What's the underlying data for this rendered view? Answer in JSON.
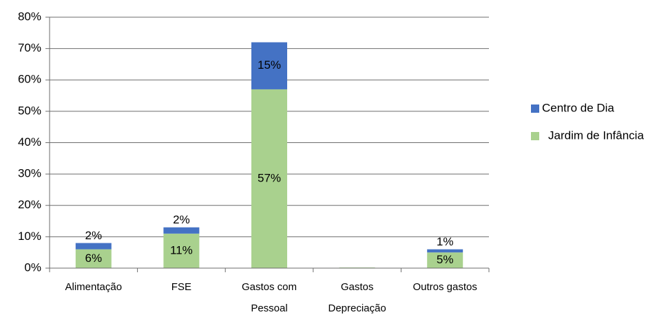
{
  "chart_data": {
    "type": "stacked_bar",
    "categories": [
      "Alimentação",
      "FSE",
      "Gastos com Pessoal",
      "Gastos Depreciação",
      "Outros gastos"
    ],
    "series": [
      {
        "name": "Jardim de Infância",
        "color": "#a9d18e",
        "values": [
          6,
          11,
          57,
          0.2,
          5
        ],
        "value_labels": [
          "6%",
          "11%",
          "57%",
          null,
          "5%"
        ]
      },
      {
        "name": "Centro de Dia",
        "color": "#4472c4",
        "values": [
          2,
          2,
          15,
          0,
          1
        ],
        "value_labels": [
          "2%",
          "2%",
          "15%",
          null,
          "1%"
        ]
      }
    ],
    "ylim": [
      0,
      80
    ],
    "yticks": [
      {
        "value": 0,
        "label": "0%"
      },
      {
        "value": 10,
        "label": "10%"
      },
      {
        "value": 20,
        "label": "20%"
      },
      {
        "value": 30,
        "label": "30%"
      },
      {
        "value": 40,
        "label": "40%"
      },
      {
        "value": 50,
        "label": "50%"
      },
      {
        "value": 60,
        "label": "60%"
      },
      {
        "value": 70,
        "label": "70%"
      },
      {
        "value": 80,
        "label": "80%"
      }
    ],
    "grid": true,
    "legend": "right"
  }
}
